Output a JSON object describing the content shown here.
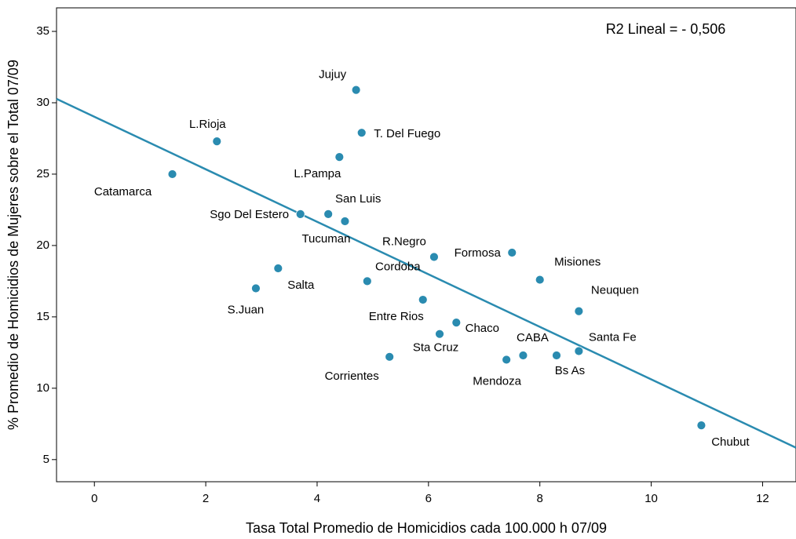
{
  "chart_data": {
    "type": "scatter",
    "xlabel": "Tasa Total Promedio de Homicidios cada 100.000 h 07/09",
    "ylabel": "% Promedio de Homicidios de Mujeres sobre el Total 07/09",
    "annotation": "R2 Lineal = - 0,506",
    "color": "#2a8bb0",
    "point_labels": [
      "Jujuy",
      "T. Del Fuego",
      "L.Rioja",
      "L.Pampa",
      "Catamarca",
      "Sgo Del Estero",
      "San Luis",
      "Tucuman",
      "R.Negro",
      "Formosa",
      "Misiones",
      "Salta",
      "Cordoba",
      "S.Juan",
      "Neuquen",
      "Entre Rios",
      "Chaco",
      "Sta Cruz",
      "Santa Fe",
      "CABA",
      "Bs As",
      "Mendoza",
      "Corrientes",
      "Chubut"
    ],
    "x": [
      4.7,
      4.8,
      2.2,
      4.4,
      1.4,
      3.7,
      4.2,
      4.5,
      6.1,
      7.5,
      8.0,
      3.3,
      4.9,
      2.9,
      8.7,
      5.9,
      6.5,
      6.2,
      8.7,
      7.7,
      8.3,
      7.4,
      5.3,
      10.9
    ],
    "values": [
      30.9,
      27.9,
      27.3,
      26.2,
      25.0,
      22.2,
      22.2,
      21.7,
      19.2,
      19.5,
      17.6,
      18.4,
      17.5,
      17.0,
      15.4,
      16.2,
      14.6,
      13.8,
      12.6,
      12.3,
      12.3,
      12.0,
      12.2,
      7.4
    ],
    "fit": {
      "intercept": 29.02,
      "slope": -1.84
    },
    "xlim": [
      -0.68,
      12.6
    ],
    "xticks": [
      0,
      2,
      4,
      6,
      8,
      10,
      12
    ],
    "ylim": [
      3.45,
      36.65
    ],
    "yticks": [
      5,
      10,
      15,
      20,
      25,
      30,
      35
    ]
  }
}
